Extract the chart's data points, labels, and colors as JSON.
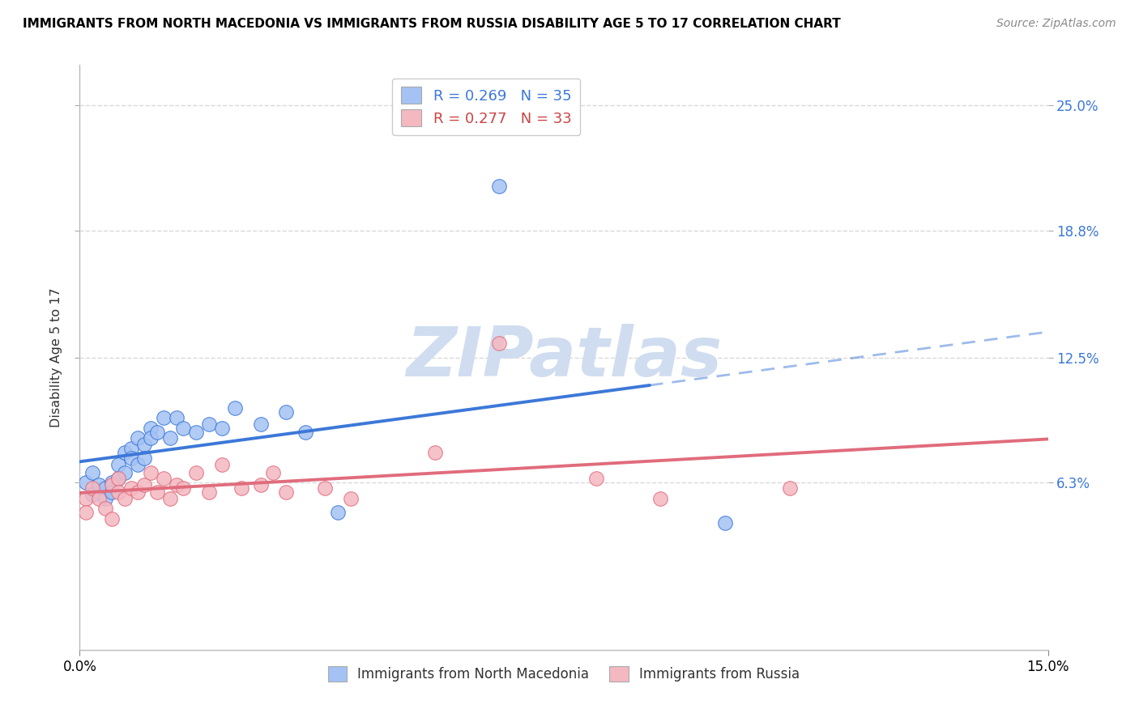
{
  "title": "IMMIGRANTS FROM NORTH MACEDONIA VS IMMIGRANTS FROM RUSSIA DISABILITY AGE 5 TO 17 CORRELATION CHART",
  "source": "Source: ZipAtlas.com",
  "ylabel": "Disability Age 5 to 17",
  "xlim": [
    0.0,
    0.15
  ],
  "ylim": [
    -0.02,
    0.27
  ],
  "xtick_labels": [
    "0.0%",
    "15.0%"
  ],
  "xtick_positions": [
    0.0,
    0.15
  ],
  "ytick_labels": [
    "6.3%",
    "12.5%",
    "18.8%",
    "25.0%"
  ],
  "ytick_positions": [
    0.063,
    0.125,
    0.188,
    0.25
  ],
  "color_macedonia": "#a4c2f4",
  "color_russia": "#f4b8c1",
  "color_trendline_macedonia": "#3c78d8",
  "color_trendline_russia": "#e06c7c",
  "R_macedonia": 0.269,
  "N_macedonia": 35,
  "R_russia": 0.277,
  "N_russia": 33,
  "legend_label_macedonia": "Immigrants from North Macedonia",
  "legend_label_russia": "Immigrants from Russia",
  "background_color": "#ffffff",
  "grid_color": "#d0d0d0",
  "text_color_blue": "#3c78d8",
  "text_color_red": "#cc4444",
  "watermark_color": "#d0ddf0",
  "trendline_split_x": 0.088,
  "mac_x": [
    0.001,
    0.002,
    0.002,
    0.003,
    0.004,
    0.004,
    0.005,
    0.005,
    0.006,
    0.006,
    0.007,
    0.007,
    0.008,
    0.008,
    0.009,
    0.009,
    0.01,
    0.01,
    0.011,
    0.011,
    0.012,
    0.013,
    0.014,
    0.015,
    0.016,
    0.018,
    0.02,
    0.022,
    0.024,
    0.028,
    0.032,
    0.035,
    0.04,
    0.065,
    0.1
  ],
  "mac_y": [
    0.063,
    0.068,
    0.057,
    0.062,
    0.06,
    0.055,
    0.063,
    0.058,
    0.072,
    0.065,
    0.078,
    0.068,
    0.08,
    0.075,
    0.085,
    0.072,
    0.082,
    0.075,
    0.09,
    0.085,
    0.088,
    0.095,
    0.085,
    0.095,
    0.09,
    0.088,
    0.092,
    0.09,
    0.1,
    0.092,
    0.098,
    0.088,
    0.048,
    0.21,
    0.043
  ],
  "rus_x": [
    0.001,
    0.001,
    0.002,
    0.003,
    0.004,
    0.005,
    0.005,
    0.006,
    0.006,
    0.007,
    0.008,
    0.009,
    0.01,
    0.011,
    0.012,
    0.013,
    0.014,
    0.015,
    0.016,
    0.018,
    0.02,
    0.022,
    0.025,
    0.028,
    0.03,
    0.032,
    0.038,
    0.042,
    0.055,
    0.065,
    0.08,
    0.09,
    0.11
  ],
  "rus_y": [
    0.055,
    0.048,
    0.06,
    0.055,
    0.05,
    0.062,
    0.045,
    0.065,
    0.058,
    0.055,
    0.06,
    0.058,
    0.062,
    0.068,
    0.058,
    0.065,
    0.055,
    0.062,
    0.06,
    0.068,
    0.058,
    0.072,
    0.06,
    0.062,
    0.068,
    0.058,
    0.06,
    0.055,
    0.078,
    0.132,
    0.065,
    0.055,
    0.06
  ]
}
